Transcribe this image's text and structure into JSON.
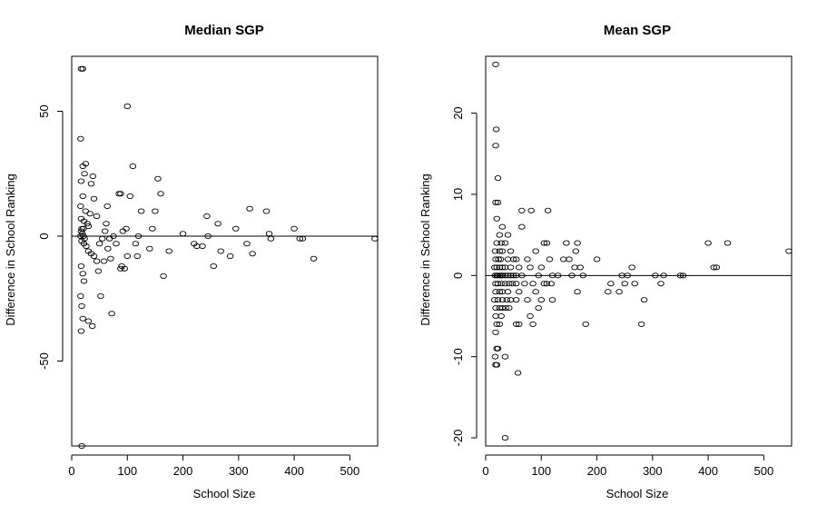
{
  "chart_data": [
    {
      "type": "scatter",
      "title": "Median SGP",
      "xlabel": "School Size",
      "ylabel": "Difference in School Ranking",
      "xlim": [
        0,
        550
      ],
      "ylim": [
        -84,
        72
      ],
      "xticks": [
        0,
        100,
        200,
        300,
        400,
        500
      ],
      "yticks": [
        -50,
        0,
        50
      ],
      "reference_line_y": 0,
      "grid": false,
      "points": [
        [
          17,
          67
        ],
        [
          20,
          67
        ],
        [
          16,
          39
        ],
        [
          20,
          28
        ],
        [
          25,
          29
        ],
        [
          17,
          22
        ],
        [
          23,
          25
        ],
        [
          35,
          21
        ],
        [
          38,
          24
        ],
        [
          20,
          16
        ],
        [
          40,
          15
        ],
        [
          16,
          12
        ],
        [
          25,
          10
        ],
        [
          33,
          9
        ],
        [
          45,
          8
        ],
        [
          17,
          7
        ],
        [
          22,
          6
        ],
        [
          28,
          5
        ],
        [
          30,
          4
        ],
        [
          18,
          3
        ],
        [
          21,
          3
        ],
        [
          17,
          2
        ],
        [
          19,
          1
        ],
        [
          21,
          0
        ],
        [
          16,
          0
        ],
        [
          23,
          -1
        ],
        [
          18,
          -2
        ],
        [
          22,
          -3
        ],
        [
          26,
          -4
        ],
        [
          30,
          -6
        ],
        [
          35,
          -7
        ],
        [
          40,
          -8
        ],
        [
          17,
          -12
        ],
        [
          20,
          -15
        ],
        [
          22,
          -18
        ],
        [
          16,
          -24
        ],
        [
          18,
          -28
        ],
        [
          20,
          -33
        ],
        [
          17,
          -38
        ],
        [
          18,
          -84
        ],
        [
          30,
          -34
        ],
        [
          37,
          -36
        ],
        [
          45,
          -10
        ],
        [
          48,
          -14
        ],
        [
          50,
          -3
        ],
        [
          55,
          -1
        ],
        [
          60,
          2
        ],
        [
          62,
          5
        ],
        [
          65,
          -5
        ],
        [
          70,
          -9
        ],
        [
          72,
          -31
        ],
        [
          75,
          0
        ],
        [
          80,
          -3
        ],
        [
          85,
          17
        ],
        [
          88,
          17
        ],
        [
          90,
          -12
        ],
        [
          95,
          -13
        ],
        [
          98,
          3
        ],
        [
          100,
          -8
        ],
        [
          100,
          52
        ],
        [
          105,
          16
        ],
        [
          110,
          28
        ],
        [
          115,
          -3
        ],
        [
          118,
          -8
        ],
        [
          120,
          0
        ],
        [
          125,
          10
        ],
        [
          140,
          -5
        ],
        [
          145,
          3
        ],
        [
          150,
          10
        ],
        [
          155,
          23
        ],
        [
          160,
          17
        ],
        [
          165,
          -16
        ],
        [
          175,
          -6
        ],
        [
          200,
          1
        ],
        [
          220,
          -3
        ],
        [
          225,
          -4
        ],
        [
          235,
          -4
        ],
        [
          243,
          8
        ],
        [
          245,
          0
        ],
        [
          255,
          -12
        ],
        [
          263,
          5
        ],
        [
          268,
          -6
        ],
        [
          285,
          -8
        ],
        [
          295,
          3
        ],
        [
          315,
          -3
        ],
        [
          320,
          11
        ],
        [
          325,
          -7
        ],
        [
          350,
          10
        ],
        [
          355,
          1
        ],
        [
          358,
          -1
        ],
        [
          400,
          3
        ],
        [
          410,
          -1
        ],
        [
          415,
          -1
        ],
        [
          435,
          -9
        ],
        [
          545,
          -1
        ],
        [
          52,
          -24
        ],
        [
          58,
          -10
        ],
        [
          64,
          12
        ],
        [
          68,
          -1
        ],
        [
          88,
          -13
        ],
        [
          92,
          2
        ]
      ]
    },
    {
      "type": "scatter",
      "title": "Mean SGP",
      "xlabel": "School Size",
      "ylabel": "Difference in School Ranking",
      "xlim": [
        0,
        550
      ],
      "ylim": [
        -21,
        27
      ],
      "xticks": [
        0,
        100,
        200,
        300,
        400,
        500
      ],
      "yticks": [
        -20,
        -10,
        0,
        10,
        20
      ],
      "reference_line_y": 0,
      "grid": false,
      "points": [
        [
          18,
          26
        ],
        [
          19,
          18
        ],
        [
          18,
          16
        ],
        [
          22,
          12
        ],
        [
          18,
          9
        ],
        [
          22,
          9
        ],
        [
          20,
          7
        ],
        [
          30,
          6
        ],
        [
          25,
          5
        ],
        [
          40,
          5
        ],
        [
          20,
          4
        ],
        [
          28,
          4
        ],
        [
          35,
          4
        ],
        [
          17,
          3
        ],
        [
          25,
          3
        ],
        [
          30,
          3
        ],
        [
          45,
          3
        ],
        [
          18,
          2
        ],
        [
          23,
          2
        ],
        [
          27,
          2
        ],
        [
          40,
          2
        ],
        [
          50,
          2
        ],
        [
          55,
          2
        ],
        [
          16,
          1
        ],
        [
          20,
          1
        ],
        [
          25,
          1
        ],
        [
          30,
          1
        ],
        [
          35,
          1
        ],
        [
          45,
          1
        ],
        [
          60,
          1
        ],
        [
          17,
          0
        ],
        [
          20,
          0
        ],
        [
          22,
          0
        ],
        [
          25,
          0
        ],
        [
          28,
          0
        ],
        [
          30,
          0
        ],
        [
          35,
          0
        ],
        [
          40,
          0
        ],
        [
          45,
          0
        ],
        [
          50,
          0
        ],
        [
          55,
          0
        ],
        [
          65,
          0
        ],
        [
          18,
          -1
        ],
        [
          22,
          -1
        ],
        [
          28,
          -1
        ],
        [
          35,
          -1
        ],
        [
          42,
          -1
        ],
        [
          48,
          -1
        ],
        [
          55,
          -1
        ],
        [
          18,
          -2
        ],
        [
          25,
          -2
        ],
        [
          30,
          -2
        ],
        [
          40,
          -2
        ],
        [
          60,
          -2
        ],
        [
          16,
          -3
        ],
        [
          22,
          -3
        ],
        [
          30,
          -3
        ],
        [
          38,
          -3
        ],
        [
          45,
          -3
        ],
        [
          55,
          -3
        ],
        [
          18,
          -4
        ],
        [
          25,
          -4
        ],
        [
          30,
          -4
        ],
        [
          36,
          -4
        ],
        [
          42,
          -4
        ],
        [
          18,
          -5
        ],
        [
          28,
          -5
        ],
        [
          20,
          -6
        ],
        [
          25,
          -6
        ],
        [
          55,
          -6
        ],
        [
          60,
          -6
        ],
        [
          18,
          -7
        ],
        [
          20,
          -9
        ],
        [
          22,
          -9
        ],
        [
          17,
          -10
        ],
        [
          35,
          -10
        ],
        [
          18,
          -11
        ],
        [
          20,
          -11
        ],
        [
          58,
          -12
        ],
        [
          35,
          -20
        ],
        [
          65,
          6
        ],
        [
          65,
          8
        ],
        [
          82,
          8
        ],
        [
          75,
          2
        ],
        [
          80,
          1
        ],
        [
          85,
          -1
        ],
        [
          90,
          -2
        ],
        [
          95,
          -4
        ],
        [
          90,
          3
        ],
        [
          100,
          1
        ],
        [
          105,
          4
        ],
        [
          110,
          4
        ],
        [
          112,
          8
        ],
        [
          115,
          2
        ],
        [
          118,
          -1
        ],
        [
          120,
          0
        ],
        [
          120,
          -3
        ],
        [
          80,
          -5
        ],
        [
          145,
          4
        ],
        [
          150,
          2
        ],
        [
          155,
          0
        ],
        [
          160,
          1
        ],
        [
          162,
          3
        ],
        [
          165,
          4
        ],
        [
          170,
          1
        ],
        [
          175,
          0
        ],
        [
          180,
          -6
        ],
        [
          200,
          2
        ],
        [
          220,
          -2
        ],
        [
          225,
          -1
        ],
        [
          240,
          -2
        ],
        [
          245,
          0
        ],
        [
          250,
          -1
        ],
        [
          255,
          0
        ],
        [
          263,
          1
        ],
        [
          268,
          -1
        ],
        [
          280,
          -6
        ],
        [
          285,
          -3
        ],
        [
          305,
          0
        ],
        [
          315,
          -1
        ],
        [
          320,
          0
        ],
        [
          350,
          0
        ],
        [
          355,
          0
        ],
        [
          400,
          4
        ],
        [
          410,
          1
        ],
        [
          415,
          1
        ],
        [
          435,
          4
        ],
        [
          545,
          3
        ],
        [
          70,
          -1
        ],
        [
          75,
          -3
        ],
        [
          85,
          -6
        ],
        [
          95,
          0
        ],
        [
          100,
          -3
        ],
        [
          105,
          -1
        ],
        [
          110,
          -1
        ],
        [
          130,
          0
        ],
        [
          140,
          2
        ],
        [
          165,
          -2
        ]
      ]
    }
  ]
}
